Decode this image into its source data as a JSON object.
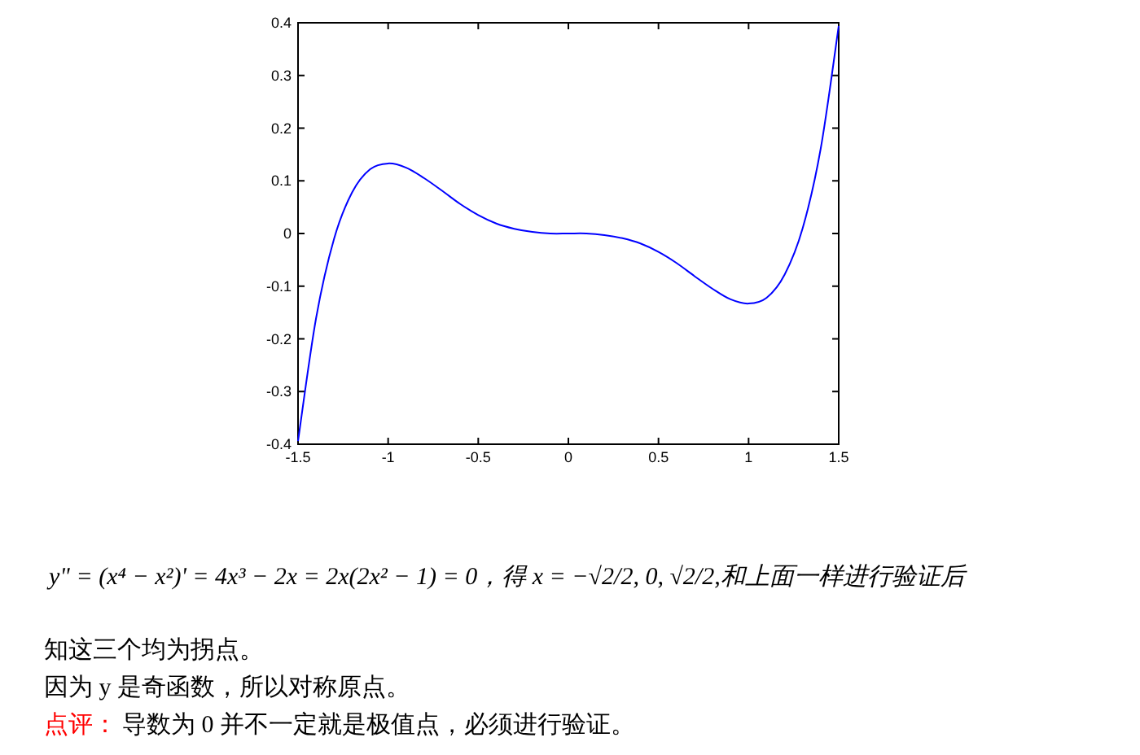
{
  "chart_data": {
    "type": "line",
    "x": [
      -1.5,
      -1.4,
      -1.3,
      -1.2,
      -1.1,
      -1.0,
      -0.9,
      -0.8,
      -0.7,
      -0.6,
      -0.5,
      -0.4,
      -0.3,
      -0.2,
      -0.1,
      0,
      0.1,
      0.2,
      0.3,
      0.4,
      0.5,
      0.6,
      0.7,
      0.8,
      0.9,
      1.0,
      1.1,
      1.2,
      1.3,
      1.4,
      1.5
    ],
    "series": [
      {
        "color": "#0000ff",
        "values": [
          -0.394,
          -0.161,
          -0.01,
          0.078,
          0.122,
          0.133,
          0.125,
          0.105,
          0.081,
          0.056,
          0.035,
          0.019,
          0.009,
          0.003,
          0.0,
          0,
          0.0,
          -0.003,
          -0.009,
          -0.019,
          -0.035,
          -0.056,
          -0.081,
          -0.105,
          -0.125,
          -0.133,
          -0.122,
          -0.078,
          0.01,
          0.161,
          0.394
        ]
      }
    ],
    "xlim": [
      -1.5,
      1.5
    ],
    "ylim": [
      -0.4,
      0.4
    ],
    "xticks": [
      -1.5,
      -1,
      -0.5,
      0,
      0.5,
      1,
      1.5
    ],
    "yticks": [
      -0.4,
      -0.3,
      -0.2,
      -0.1,
      0,
      0.1,
      0.2,
      0.3,
      0.4
    ],
    "marker": "none",
    "line_style": "solid",
    "grid": false,
    "annotations": [
      "y\" = (x⁴ − x²)' = 4x³ − 2x = 2x(2x² − 1) = 0，得 x = −√2/2, 0, √2/2,和上面一样进行验证后",
      "知这三个均为拐点。",
      "因为 y 是奇函数，所以对称原点。",
      "点评：",
      "导数为 0 并不一定就是极值点，必须进行验证。"
    ]
  }
}
